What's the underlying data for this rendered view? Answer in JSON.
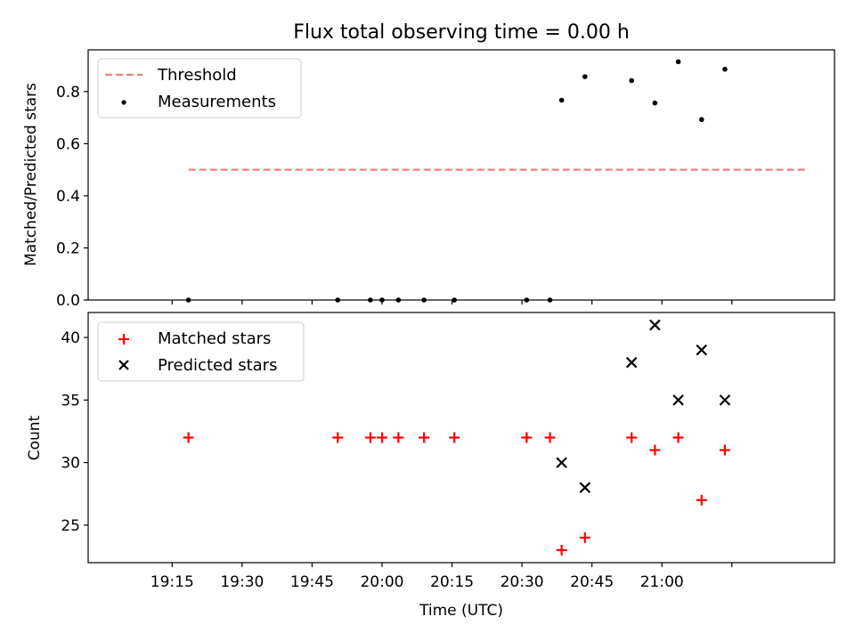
{
  "chart_data": [
    {
      "type": "scatter",
      "title": "Flux total observing time = 0.00 h",
      "xlabel": "",
      "ylabel": "Matched/Predicted stars",
      "xlim_minutes": [
        -18,
        142
      ],
      "ylim": [
        0,
        0.96
      ],
      "yticks": [
        0.0,
        0.2,
        0.4,
        0.6,
        0.8
      ],
      "ytick_labels": [
        "0.0",
        "0.2",
        "0.4",
        "0.6",
        "0.8"
      ],
      "xticks": [
        0,
        15,
        30,
        45,
        60,
        75,
        90,
        105,
        120
      ],
      "grid": false,
      "legend": "upper-left",
      "threshold": {
        "name": "Threshold",
        "value": 0.5,
        "x_start": 3.5,
        "x_end": 136,
        "color": "#f08080"
      },
      "series": [
        {
          "name": "Measurements",
          "color": "#000000",
          "marker": "dot",
          "x": [
            3.5,
            35.5,
            42.5,
            45,
            48.5,
            54,
            60.5,
            76,
            81,
            83.5,
            88.5,
            98.5,
            103.5,
            108.5,
            113.5,
            118.5,
            123.5
          ],
          "y": [
            0,
            0,
            0,
            0,
            0,
            0,
            0,
            0,
            0,
            0.7667,
            0.8571,
            0.8421,
            0.7561,
            0.9143,
            0.6923,
            0.8857,
            null
          ]
        }
      ]
    },
    {
      "type": "scatter",
      "title": "",
      "xlabel": "Time (UTC)",
      "ylabel": "Count",
      "xlim_minutes": [
        -18,
        142
      ],
      "ylim": [
        22,
        42
      ],
      "yticks": [
        25,
        30,
        35,
        40
      ],
      "ytick_labels": [
        "25",
        "30",
        "35",
        "40"
      ],
      "xticks": [
        0,
        15,
        30,
        45,
        60,
        75,
        90,
        105,
        120
      ],
      "xtick_labels": [
        "19:15",
        "19:30",
        "19:45",
        "20:00",
        "20:15",
        "20:30",
        "20:45",
        "21:00",
        ""
      ],
      "grid": false,
      "legend": "upper-left",
      "series": [
        {
          "name": "Matched stars",
          "color": "#ff0000",
          "marker": "plus",
          "x": [
            3.5,
            35.5,
            42.5,
            45,
            48.5,
            54,
            60.5,
            76,
            81,
            83.5,
            88.5,
            98.5,
            103.5,
            108.5,
            113.5,
            118.5
          ],
          "y": [
            32,
            32,
            32,
            32,
            32,
            32,
            32,
            32,
            32,
            23,
            24,
            32,
            31,
            32,
            27,
            31
          ]
        },
        {
          "name": "Predicted stars",
          "color": "#000000",
          "marker": "x",
          "x": [
            83.5,
            88.5,
            98.5,
            103.5,
            108.5,
            113.5,
            118.5
          ],
          "y": [
            30,
            28,
            38,
            41,
            35,
            39,
            35
          ]
        }
      ]
    }
  ]
}
